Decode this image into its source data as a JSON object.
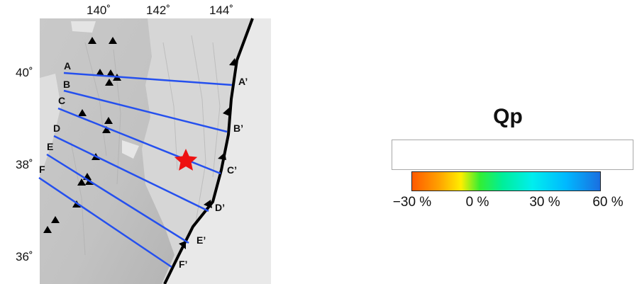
{
  "map": {
    "lon_ticks": [
      "140˚",
      "142˚",
      "144˚"
    ],
    "lat_ticks": [
      "40˚",
      "38˚",
      "36˚"
    ],
    "profiles": [
      {
        "start": "A",
        "end": "A’"
      },
      {
        "start": "B",
        "end": "B’"
      },
      {
        "start": "C",
        "end": "C’"
      },
      {
        "start": "D",
        "end": "D’"
      },
      {
        "start": "E",
        "end": "E’"
      },
      {
        "start": "F",
        "end": "F’"
      }
    ],
    "colors": {
      "profile_line": "#2550ee",
      "epicenter_star": "#ee1111",
      "trench": "#000000"
    },
    "icons": {
      "volcano": "volcano-triangle-icon",
      "epicenter": "star-icon"
    }
  },
  "colorbar": {
    "title": "Qp",
    "ticks": [
      "−30 %",
      "0 %",
      "30 %",
      "60 %"
    ]
  }
}
